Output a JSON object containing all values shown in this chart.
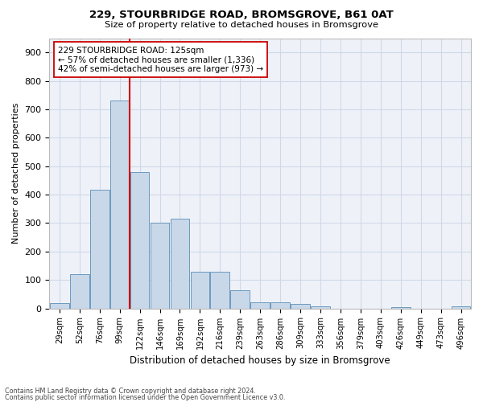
{
  "title1": "229, STOURBRIDGE ROAD, BROMSGROVE, B61 0AT",
  "title2": "Size of property relative to detached houses in Bromsgrove",
  "xlabel": "Distribution of detached houses by size in Bromsgrove",
  "ylabel": "Number of detached properties",
  "bar_color": "#c8d8e8",
  "bar_edge_color": "#5b8db8",
  "bar_heights": [
    18,
    120,
    418,
    730,
    478,
    302,
    316,
    130,
    130,
    65,
    22,
    22,
    15,
    8,
    0,
    0,
    0,
    5,
    0,
    0,
    8
  ],
  "bin_labels": [
    "29sqm",
    "52sqm",
    "76sqm",
    "99sqm",
    "122sqm",
    "146sqm",
    "169sqm",
    "192sqm",
    "216sqm",
    "239sqm",
    "263sqm",
    "286sqm",
    "309sqm",
    "333sqm",
    "356sqm",
    "379sqm",
    "403sqm",
    "426sqm",
    "449sqm",
    "473sqm",
    "496sqm"
  ],
  "vline_color": "#cc0000",
  "vline_x": 3.5,
  "annotation_text": "229 STOURBRIDGE ROAD: 125sqm\n← 57% of detached houses are smaller (1,336)\n42% of semi-detached houses are larger (973) →",
  "annotation_box_color": "#ffffff",
  "annotation_border_color": "#cc0000",
  "ylim": [
    0,
    950
  ],
  "yticks": [
    0,
    100,
    200,
    300,
    400,
    500,
    600,
    700,
    800,
    900
  ],
  "footer1": "Contains HM Land Registry data © Crown copyright and database right 2024.",
  "footer2": "Contains public sector information licensed under the Open Government Licence v3.0.",
  "grid_color": "#d0d8e8",
  "bg_color": "#eef2f8"
}
